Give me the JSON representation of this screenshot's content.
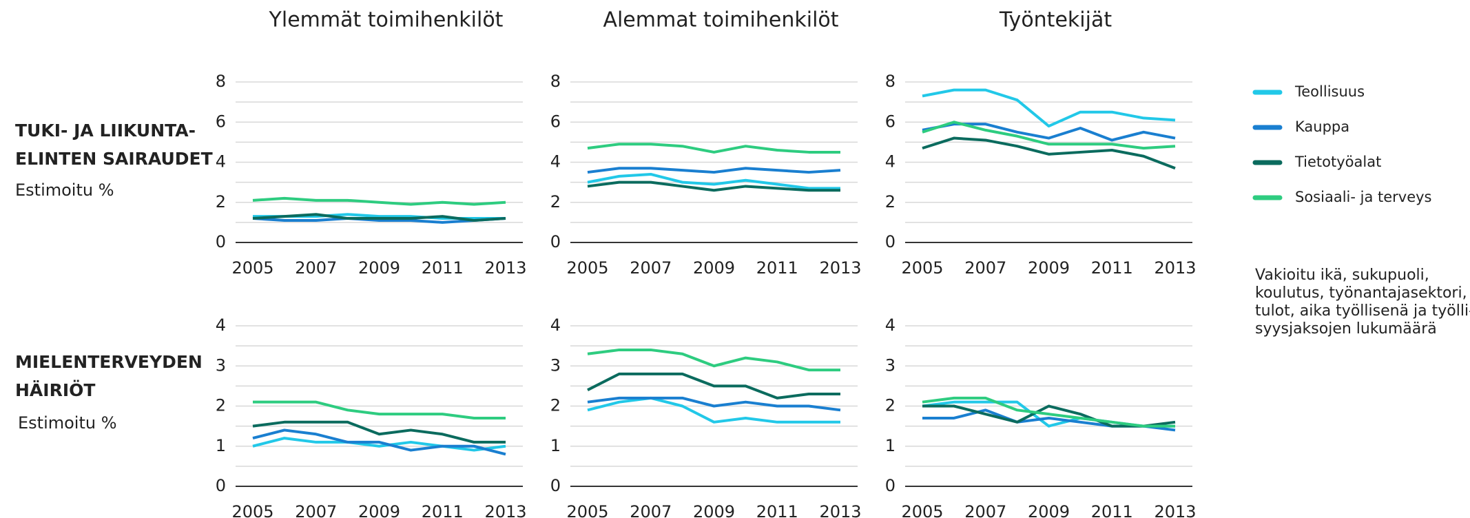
{
  "chart_data": [
    {
      "type": "line",
      "title": "Ylemmät toimihenkilöt",
      "x": [
        2005,
        2006,
        2007,
        2008,
        2009,
        2010,
        2011,
        2012,
        2013
      ],
      "xlim": [
        2005,
        2013
      ],
      "xticks": [
        2005,
        2007,
        2009,
        2011,
        2013
      ],
      "ylim": [
        0,
        8
      ],
      "yticks": [
        0,
        2,
        4,
        6,
        8
      ],
      "minor_yticks": [
        1,
        3,
        5,
        7
      ],
      "grid": true,
      "series": [
        {
          "name": "Teollisuus",
          "color": "#22c8e8",
          "values": [
            1.3,
            1.3,
            1.3,
            1.4,
            1.3,
            1.3,
            1.2,
            1.2,
            1.2
          ]
        },
        {
          "name": "Kauppa",
          "color": "#1a7fd0",
          "values": [
            1.2,
            1.1,
            1.1,
            1.2,
            1.1,
            1.1,
            1.0,
            1.1,
            1.2
          ]
        },
        {
          "name": "Tietotyöalat",
          "color": "#0b6b5e",
          "values": [
            1.2,
            1.3,
            1.4,
            1.2,
            1.2,
            1.2,
            1.3,
            1.1,
            1.2
          ]
        },
        {
          "name": "Sosiaali- ja terveys",
          "color": "#2ecc80",
          "values": [
            2.1,
            2.2,
            2.1,
            2.1,
            2.0,
            1.9,
            2.0,
            1.9,
            2.0
          ]
        }
      ]
    },
    {
      "type": "line",
      "title": "Alemmat toimihenkilöt",
      "x": [
        2005,
        2006,
        2007,
        2008,
        2009,
        2010,
        2011,
        2012,
        2013
      ],
      "xlim": [
        2005,
        2013
      ],
      "xticks": [
        2005,
        2007,
        2009,
        2011,
        2013
      ],
      "ylim": [
        0,
        8
      ],
      "yticks": [
        0,
        2,
        4,
        6,
        8
      ],
      "minor_yticks": [
        1,
        3,
        5,
        7
      ],
      "grid": true,
      "series": [
        {
          "name": "Teollisuus",
          "color": "#22c8e8",
          "values": [
            3.0,
            3.3,
            3.4,
            3.0,
            2.9,
            3.1,
            2.9,
            2.7,
            2.7
          ]
        },
        {
          "name": "Kauppa",
          "color": "#1a7fd0",
          "values": [
            3.5,
            3.7,
            3.7,
            3.6,
            3.5,
            3.7,
            3.6,
            3.5,
            3.6
          ]
        },
        {
          "name": "Tietotyöalat",
          "color": "#0b6b5e",
          "values": [
            2.8,
            3.0,
            3.0,
            2.8,
            2.6,
            2.8,
            2.7,
            2.6,
            2.6
          ]
        },
        {
          "name": "Sosiaali- ja terveys",
          "color": "#2ecc80",
          "values": [
            4.7,
            4.9,
            4.9,
            4.8,
            4.5,
            4.8,
            4.6,
            4.5,
            4.5
          ]
        }
      ]
    },
    {
      "type": "line",
      "title": "Työntekijät",
      "x": [
        2005,
        2006,
        2007,
        2008,
        2009,
        2010,
        2011,
        2012,
        2013
      ],
      "xlim": [
        2005,
        2013
      ],
      "xticks": [
        2005,
        2007,
        2009,
        2011,
        2013
      ],
      "ylim": [
        0,
        8
      ],
      "yticks": [
        0,
        2,
        4,
        6,
        8
      ],
      "minor_yticks": [
        1,
        3,
        5,
        7
      ],
      "grid": true,
      "series": [
        {
          "name": "Teollisuus",
          "color": "#22c8e8",
          "values": [
            7.3,
            7.6,
            7.6,
            7.1,
            5.8,
            6.5,
            6.5,
            6.2,
            6.1
          ]
        },
        {
          "name": "Kauppa",
          "color": "#1a7fd0",
          "values": [
            5.6,
            5.9,
            5.9,
            5.5,
            5.2,
            5.7,
            5.1,
            5.5,
            5.2
          ]
        },
        {
          "name": "Tietotyöalat",
          "color": "#0b6b5e",
          "values": [
            4.7,
            5.2,
            5.1,
            4.8,
            4.4,
            4.5,
            4.6,
            4.3,
            3.7
          ]
        },
        {
          "name": "Sosiaali- ja terveys",
          "color": "#2ecc80",
          "values": [
            5.5,
            6.0,
            5.6,
            5.3,
            4.9,
            4.9,
            4.9,
            4.7,
            4.8
          ]
        }
      ]
    },
    {
      "type": "line",
      "x": [
        2005,
        2006,
        2007,
        2008,
        2009,
        2010,
        2011,
        2012,
        2013
      ],
      "xlim": [
        2005,
        2013
      ],
      "xticks": [
        2005,
        2007,
        2009,
        2011,
        2013
      ],
      "ylim": [
        0,
        4
      ],
      "yticks": [
        0,
        1,
        2,
        3,
        4
      ],
      "minor_yticks": [
        0.5,
        1.5,
        2.5,
        3.5
      ],
      "grid": true,
      "series": [
        {
          "name": "Teollisuus",
          "color": "#22c8e8",
          "values": [
            1.0,
            1.2,
            1.1,
            1.1,
            1.0,
            1.1,
            1.0,
            0.9,
            1.0
          ]
        },
        {
          "name": "Kauppa",
          "color": "#1a7fd0",
          "values": [
            1.2,
            1.4,
            1.3,
            1.1,
            1.1,
            0.9,
            1.0,
            1.0,
            0.8
          ]
        },
        {
          "name": "Tietotyöalat",
          "color": "#0b6b5e",
          "values": [
            1.5,
            1.6,
            1.6,
            1.6,
            1.3,
            1.4,
            1.3,
            1.1,
            1.1
          ]
        },
        {
          "name": "Sosiaali- ja terveys",
          "color": "#2ecc80",
          "values": [
            2.1,
            2.1,
            2.1,
            1.9,
            1.8,
            1.8,
            1.8,
            1.7,
            1.7
          ]
        }
      ]
    },
    {
      "type": "line",
      "x": [
        2005,
        2006,
        2007,
        2008,
        2009,
        2010,
        2011,
        2012,
        2013
      ],
      "xlim": [
        2005,
        2013
      ],
      "xticks": [
        2005,
        2007,
        2009,
        2011,
        2013
      ],
      "ylim": [
        0,
        4
      ],
      "yticks": [
        0,
        1,
        2,
        3,
        4
      ],
      "minor_yticks": [
        0.5,
        1.5,
        2.5,
        3.5
      ],
      "grid": true,
      "series": [
        {
          "name": "Teollisuus",
          "color": "#22c8e8",
          "values": [
            1.9,
            2.1,
            2.2,
            2.0,
            1.6,
            1.7,
            1.6,
            1.6,
            1.6
          ]
        },
        {
          "name": "Kauppa",
          "color": "#1a7fd0",
          "values": [
            2.1,
            2.2,
            2.2,
            2.2,
            2.0,
            2.1,
            2.0,
            2.0,
            1.9
          ]
        },
        {
          "name": "Tietotyöalat",
          "color": "#0b6b5e",
          "values": [
            2.4,
            2.8,
            2.8,
            2.8,
            2.5,
            2.5,
            2.2,
            2.3,
            2.3
          ]
        },
        {
          "name": "Sosiaali- ja terveys",
          "color": "#2ecc80",
          "values": [
            3.3,
            3.4,
            3.4,
            3.3,
            3.0,
            3.2,
            3.1,
            2.9,
            2.9
          ]
        }
      ]
    },
    {
      "type": "line",
      "x": [
        2005,
        2006,
        2007,
        2008,
        2009,
        2010,
        2011,
        2012,
        2013
      ],
      "xlim": [
        2005,
        2013
      ],
      "xticks": [
        2005,
        2007,
        2009,
        2011,
        2013
      ],
      "ylim": [
        0,
        4
      ],
      "yticks": [
        0,
        1,
        2,
        3,
        4
      ],
      "minor_yticks": [
        0.5,
        1.5,
        2.5,
        3.5
      ],
      "grid": true,
      "series": [
        {
          "name": "Teollisuus",
          "color": "#22c8e8",
          "values": [
            2.0,
            2.1,
            2.1,
            2.1,
            1.5,
            1.7,
            1.6,
            1.5,
            1.5
          ]
        },
        {
          "name": "Kauppa",
          "color": "#1a7fd0",
          "values": [
            1.7,
            1.7,
            1.9,
            1.6,
            1.7,
            1.6,
            1.5,
            1.5,
            1.4
          ]
        },
        {
          "name": "Tietotyöalat",
          "color": "#0b6b5e",
          "values": [
            2.0,
            2.0,
            1.8,
            1.6,
            2.0,
            1.8,
            1.5,
            1.5,
            1.6
          ]
        },
        {
          "name": "Sosiaali- ja terveys",
          "color": "#2ecc80",
          "values": [
            2.1,
            2.2,
            2.2,
            1.9,
            1.8,
            1.7,
            1.6,
            1.5,
            1.5
          ]
        }
      ]
    }
  ],
  "row_labels": [
    {
      "title": [
        "TUKI- JA LIIKUNTA-",
        "ELINTEN SAIRAUDET"
      ],
      "subtitle": "Estimoitu %"
    },
    {
      "title": [
        "MIELENTERVEYDEN",
        "HÄIRIÖT"
      ],
      "subtitle": "Estimoitu %"
    }
  ],
  "note": [
    "Vakioitu ikä, sukupuoli,",
    "koulutus, työnantajasektori,",
    "tulot, aika työllisenä ja työlli-",
    "syysjaksojen lukumäärä"
  ]
}
